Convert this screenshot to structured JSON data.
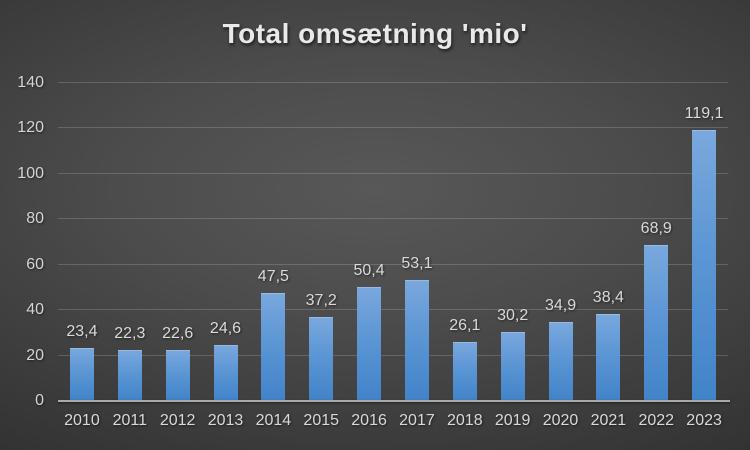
{
  "title": "Total omsætning 'mio'",
  "colors": {
    "background_center": "#585858",
    "background_edge": "#252525",
    "bar_gradient_top": "#7aa8de",
    "bar_gradient_bottom": "#4183c9",
    "gridline": "rgba(255,255,255,0.17)",
    "axis_line": "#a9a9a9",
    "title_text": "#e9e9e9",
    "label_text": "#d9d9d9"
  },
  "chart_data": {
    "type": "bar",
    "title": "Total omsætning 'mio'",
    "categories": [
      "2010",
      "2011",
      "2012",
      "2013",
      "2014",
      "2015",
      "2016",
      "2017",
      "2018",
      "2019",
      "2020",
      "2021",
      "2022",
      "2023"
    ],
    "values": [
      23.4,
      22.3,
      22.6,
      24.6,
      47.5,
      37.2,
      50.4,
      53.1,
      26.1,
      30.2,
      34.9,
      38.4,
      68.9,
      119.1
    ],
    "value_labels": [
      "23,4",
      "22,3",
      "22,6",
      "24,6",
      "47,5",
      "37,2",
      "50,4",
      "53,1",
      "26,1",
      "30,2",
      "34,9",
      "38,4",
      "68,9",
      "119,1"
    ],
    "xlabel": "",
    "ylabel": "",
    "ylim": [
      0,
      140
    ],
    "ytick_interval": 20,
    "ytick_labels": [
      "0",
      "20",
      "40",
      "60",
      "80",
      "100",
      "120",
      "140"
    ],
    "grid": true,
    "legend": false,
    "decimal_separator": ","
  }
}
